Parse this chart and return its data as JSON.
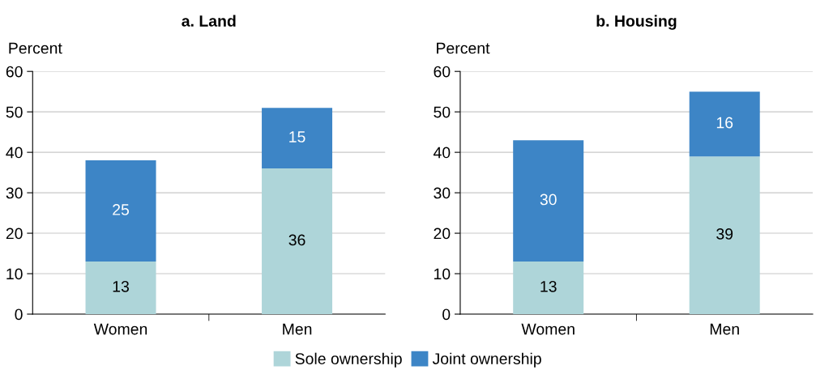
{
  "chart_data": [
    {
      "type": "bar",
      "title": "a. Land",
      "ylabel": "Percent",
      "categories": [
        "Women",
        "Men"
      ],
      "stacked": true,
      "series": [
        {
          "name": "Sole ownership",
          "color": "#aed5d9",
          "values": [
            13,
            36
          ]
        },
        {
          "name": "Joint ownership",
          "color": "#3d85c6",
          "values": [
            25,
            15
          ]
        }
      ],
      "ylim": [
        0,
        60
      ],
      "yticks": [
        0,
        10,
        20,
        30,
        40,
        50,
        60
      ],
      "grid": "y",
      "data_labels": true,
      "legend": "bottom"
    },
    {
      "type": "bar",
      "title": "b. Housing",
      "ylabel": "Percent",
      "categories": [
        "Women",
        "Men"
      ],
      "stacked": true,
      "series": [
        {
          "color": "#aed5d9",
          "values": [
            13,
            39
          ]
        },
        {
          "color": "#3d85c6",
          "values": [
            30,
            16
          ]
        }
      ],
      "ylim": [
        0,
        60
      ],
      "yticks": [
        0,
        10,
        20,
        30,
        40,
        50,
        60
      ],
      "grid": "y",
      "data_labels": true
    }
  ]
}
